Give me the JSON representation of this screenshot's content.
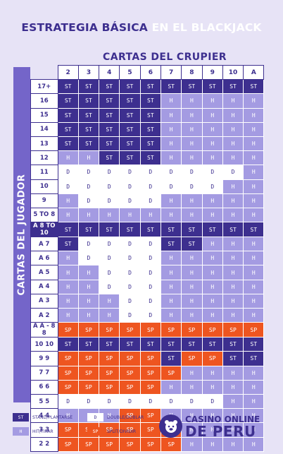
{
  "title": {
    "part1": "ESTRATEGIA BÁSICA",
    "part2": "EN EL BLACKJACK"
  },
  "dealer_label": "CARTAS DEL CRUPIER",
  "player_label": "CARTAS DEL JUGADOR",
  "dealer_cards": [
    "2",
    "3",
    "4",
    "5",
    "6",
    "7",
    "8",
    "9",
    "10",
    "A"
  ],
  "rows": [
    {
      "hand": "17+",
      "pair": false,
      "actions": [
        "ST",
        "ST",
        "ST",
        "ST",
        "ST",
        "ST",
        "ST",
        "ST",
        "ST",
        "ST"
      ]
    },
    {
      "hand": "16",
      "pair": false,
      "actions": [
        "ST",
        "ST",
        "ST",
        "ST",
        "ST",
        "H",
        "H",
        "H",
        "H",
        "H"
      ]
    },
    {
      "hand": "15",
      "pair": false,
      "actions": [
        "ST",
        "ST",
        "ST",
        "ST",
        "ST",
        "H",
        "H",
        "H",
        "H",
        "H"
      ]
    },
    {
      "hand": "14",
      "pair": false,
      "actions": [
        "ST",
        "ST",
        "ST",
        "ST",
        "ST",
        "H",
        "H",
        "H",
        "H",
        "H"
      ]
    },
    {
      "hand": "13",
      "pair": false,
      "actions": [
        "ST",
        "ST",
        "ST",
        "ST",
        "ST",
        "H",
        "H",
        "H",
        "H",
        "H"
      ]
    },
    {
      "hand": "12",
      "pair": false,
      "actions": [
        "H",
        "H",
        "ST",
        "ST",
        "ST",
        "H",
        "H",
        "H",
        "H",
        "H"
      ]
    },
    {
      "hand": "11",
      "pair": false,
      "actions": [
        "D",
        "D",
        "D",
        "D",
        "D",
        "D",
        "D",
        "D",
        "D",
        "H"
      ]
    },
    {
      "hand": "10",
      "pair": false,
      "actions": [
        "D",
        "D",
        "D",
        "D",
        "D",
        "D",
        "D",
        "D",
        "H",
        "H"
      ]
    },
    {
      "hand": "9",
      "pair": false,
      "actions": [
        "H",
        "D",
        "D",
        "D",
        "D",
        "H",
        "H",
        "H",
        "H",
        "H"
      ]
    },
    {
      "hand": "5 TO 8",
      "pair": false,
      "actions": [
        "H",
        "H",
        "H",
        "H",
        "H",
        "H",
        "H",
        "H",
        "H",
        "H"
      ]
    },
    {
      "hand": "A 8 TO 10",
      "pair": true,
      "actions": [
        "ST",
        "ST",
        "ST",
        "ST",
        "ST",
        "ST",
        "ST",
        "ST",
        "ST",
        "ST"
      ]
    },
    {
      "hand": "A 7",
      "pair": false,
      "actions": [
        "ST",
        "D",
        "D",
        "D",
        "D",
        "ST",
        "ST",
        "H",
        "H",
        "H"
      ]
    },
    {
      "hand": "A 6",
      "pair": false,
      "actions": [
        "H",
        "D",
        "D",
        "D",
        "D",
        "H",
        "H",
        "H",
        "H",
        "H"
      ]
    },
    {
      "hand": "A 5",
      "pair": false,
      "actions": [
        "H",
        "H",
        "D",
        "D",
        "D",
        "H",
        "H",
        "H",
        "H",
        "H"
      ]
    },
    {
      "hand": "A 4",
      "pair": false,
      "actions": [
        "H",
        "H",
        "D",
        "D",
        "D",
        "H",
        "H",
        "H",
        "H",
        "H"
      ]
    },
    {
      "hand": "A 3",
      "pair": false,
      "actions": [
        "H",
        "H",
        "H",
        "D",
        "D",
        "H",
        "H",
        "H",
        "H",
        "H"
      ]
    },
    {
      "hand": "A 2",
      "pair": false,
      "actions": [
        "H",
        "H",
        "H",
        "D",
        "D",
        "H",
        "H",
        "H",
        "H",
        "H"
      ]
    },
    {
      "hand": "A A - 8 8",
      "pair": false,
      "actions": [
        "SP",
        "SP",
        "SP",
        "SP",
        "SP",
        "SP",
        "SP",
        "SP",
        "SP",
        "SP"
      ]
    },
    {
      "hand": "10 10",
      "pair": false,
      "actions": [
        "ST",
        "ST",
        "ST",
        "ST",
        "ST",
        "ST",
        "ST",
        "ST",
        "ST",
        "ST"
      ]
    },
    {
      "hand": "9 9",
      "pair": false,
      "actions": [
        "SP",
        "SP",
        "SP",
        "SP",
        "SP",
        "ST",
        "SP",
        "SP",
        "ST",
        "ST"
      ]
    },
    {
      "hand": "7 7",
      "pair": false,
      "actions": [
        "SP",
        "SP",
        "SP",
        "SP",
        "SP",
        "SP",
        "H",
        "H",
        "H",
        "H"
      ]
    },
    {
      "hand": "6 6",
      "pair": false,
      "actions": [
        "SP",
        "SP",
        "SP",
        "SP",
        "SP",
        "H",
        "H",
        "H",
        "H",
        "H"
      ]
    },
    {
      "hand": "5 5",
      "pair": false,
      "actions": [
        "D",
        "D",
        "D",
        "D",
        "D",
        "D",
        "D",
        "D",
        "H",
        "H"
      ]
    },
    {
      "hand": "4 4",
      "pair": false,
      "actions": [
        "H",
        "H",
        "H",
        "SP",
        "SP",
        "H",
        "H",
        "H",
        "H",
        "H"
      ]
    },
    {
      "hand": "3 3",
      "pair": false,
      "actions": [
        "SP",
        "SP",
        "SP",
        "SP",
        "SP",
        "SP",
        "H",
        "H",
        "H",
        "H"
      ]
    },
    {
      "hand": "2 2",
      "pair": false,
      "actions": [
        "SP",
        "SP",
        "SP",
        "SP",
        "SP",
        "SP",
        "H",
        "H",
        "H",
        "H"
      ]
    }
  ],
  "legend": [
    {
      "code": "ST",
      "label": "STAND/PLANTARSE"
    },
    {
      "code": "D",
      "label": "DOUBLE/DOBLAR"
    },
    {
      "code": "H",
      "label": "HIT/TIRAR"
    },
    {
      "code": "SP",
      "label": "SPLIT/DIVIDIR"
    }
  ],
  "brand": {
    "line1": "CASINO ONLINE",
    "line2": "DE PERU"
  },
  "colors": {
    "stand": "#3d2f8f",
    "hit": "#a49be2",
    "double": "#ffffff",
    "split": "#ee5520",
    "background": "#e7e3f6"
  }
}
